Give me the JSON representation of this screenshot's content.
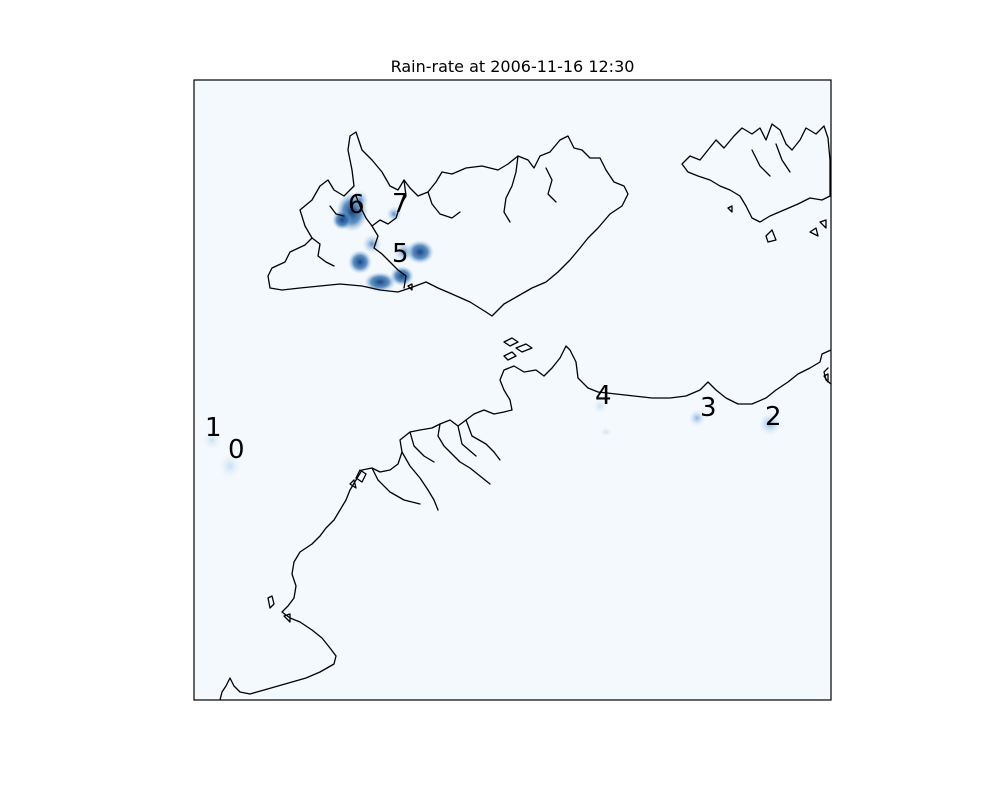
{
  "title": "Rain-rate at 2006-11-16 12:30",
  "colors": {
    "background": "#f4f9fd",
    "frame": "#000000",
    "coastline": "#000000",
    "rain_low": "#c6dbef",
    "rain_mid": "#4a86c0",
    "rain_high": "#0b3d7a"
  },
  "storm_cells": [
    {
      "label": "0",
      "intensity": "very light"
    },
    {
      "label": "1",
      "intensity": "very light"
    },
    {
      "label": "2",
      "intensity": "light"
    },
    {
      "label": "3",
      "intensity": "light"
    },
    {
      "label": "4",
      "intensity": "very light"
    },
    {
      "label": "5",
      "intensity": "heavy"
    },
    {
      "label": "6",
      "intensity": "heavy"
    },
    {
      "label": "7",
      "intensity": "moderate"
    }
  ]
}
